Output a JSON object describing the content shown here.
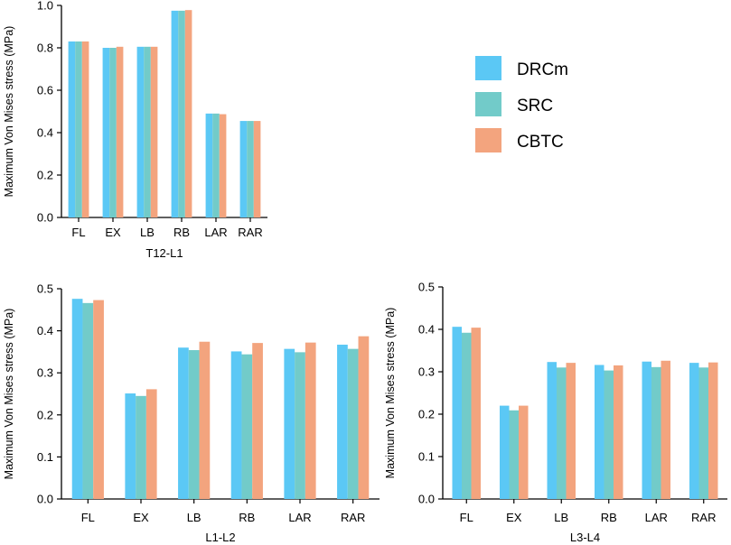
{
  "legend": [
    {
      "name": "DRCm",
      "color": "#5BC8F5"
    },
    {
      "name": "SRC",
      "color": "#72CBC9"
    },
    {
      "name": "CBTC",
      "color": "#F3A47E"
    }
  ],
  "chart_data": [
    {
      "type": "bar",
      "title": "T12-L1",
      "ylabel": "Maximum Von Mises stress (MPa)",
      "ylim": [
        0,
        1.0
      ],
      "yticks": [
        "0.0",
        "0.2",
        "0.4",
        "0.6",
        "0.8",
        "1.0"
      ],
      "categories": [
        "FL",
        "EX",
        "LB",
        "RB",
        "LAR",
        "RAR"
      ],
      "series": [
        {
          "name": "DRCm",
          "values": [
            0.83,
            0.8,
            0.805,
            0.975,
            0.49,
            0.455
          ]
        },
        {
          "name": "SRC",
          "values": [
            0.83,
            0.8,
            0.805,
            0.975,
            0.49,
            0.455
          ]
        },
        {
          "name": "CBTC",
          "values": [
            0.83,
            0.805,
            0.805,
            0.978,
            0.487,
            0.455
          ]
        }
      ]
    },
    {
      "type": "bar",
      "title": "L1-L2",
      "ylabel": "Maximum Von Mises stress (MPa)",
      "ylim": [
        0,
        0.5
      ],
      "yticks": [
        "0.0",
        "0.1",
        "0.2",
        "0.3",
        "0.4",
        "0.5"
      ],
      "categories": [
        "FL",
        "EX",
        "LB",
        "RB",
        "LAR",
        "RAR"
      ],
      "series": [
        {
          "name": "DRCm",
          "values": [
            0.476,
            0.251,
            0.36,
            0.351,
            0.357,
            0.367
          ]
        },
        {
          "name": "SRC",
          "values": [
            0.466,
            0.245,
            0.354,
            0.344,
            0.349,
            0.357
          ]
        },
        {
          "name": "CBTC",
          "values": [
            0.473,
            0.261,
            0.374,
            0.371,
            0.372,
            0.387
          ]
        }
      ]
    },
    {
      "type": "bar",
      "title": "L3-L4",
      "ylabel": "Maximum Von Mises stress (MPa)",
      "ylim": [
        0,
        0.5
      ],
      "yticks": [
        "0.0",
        "0.1",
        "0.2",
        "0.3",
        "0.4",
        "0.5"
      ],
      "categories": [
        "FL",
        "EX",
        "LB",
        "RB",
        "LAR",
        "RAR"
      ],
      "series": [
        {
          "name": "DRCm",
          "values": [
            0.406,
            0.22,
            0.323,
            0.316,
            0.324,
            0.321
          ]
        },
        {
          "name": "SRC",
          "values": [
            0.392,
            0.209,
            0.31,
            0.303,
            0.311,
            0.31
          ]
        },
        {
          "name": "CBTC",
          "values": [
            0.404,
            0.22,
            0.321,
            0.315,
            0.326,
            0.322
          ]
        }
      ]
    }
  ]
}
